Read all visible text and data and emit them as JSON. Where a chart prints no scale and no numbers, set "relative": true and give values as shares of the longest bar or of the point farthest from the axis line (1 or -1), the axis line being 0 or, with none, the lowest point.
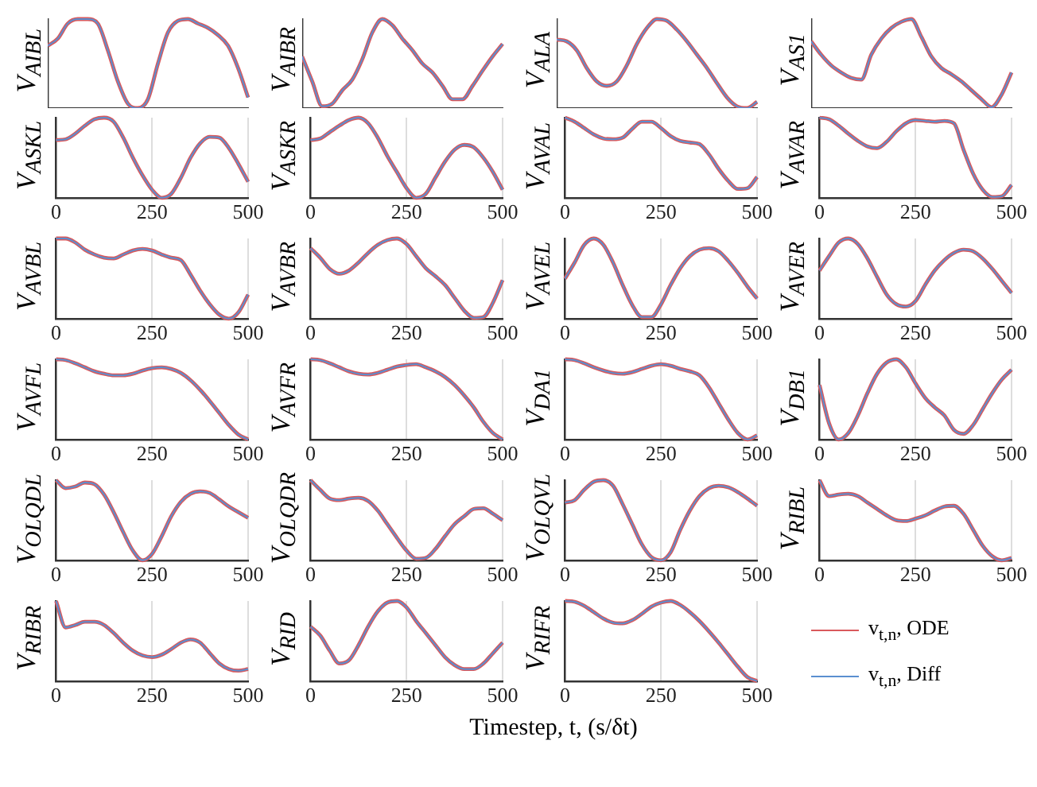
{
  "chart_data": [
    {
      "type": "line",
      "ylabel": "V$_{AIBL}$",
      "categories": [
        null,
        null,
        null,
        null,
        null,
        null,
        null,
        null,
        null,
        null,
        null,
        null,
        null,
        null,
        null,
        null,
        null,
        null,
        null,
        null,
        null
      ],
      "relative": true,
      "series": [
        {
          "color": "#d9595c",
          "values": [
            0.7,
            0.78,
            0.95,
            1,
            1,
            0.95,
            0.65,
            0.3,
            0.05,
            0,
            0.1,
            0.5,
            0.85,
            0.98,
            1,
            0.95,
            0.9,
            0.82,
            0.7,
            0.45,
            0.12
          ]
        },
        {
          "color": "#5a8fd0",
          "values": [
            0.7,
            0.78,
            0.95,
            1,
            1,
            0.95,
            0.65,
            0.3,
            0.05,
            0,
            0.1,
            0.5,
            0.85,
            0.98,
            1,
            0.95,
            0.9,
            0.82,
            0.7,
            0.45,
            0.12
          ]
        }
      ]
    },
    {
      "type": "line",
      "ylabel": "V$_{AIBR}$",
      "categories": [
        null,
        null,
        null,
        null,
        null,
        null,
        null,
        null,
        null,
        null,
        null,
        null,
        null,
        null,
        null,
        null,
        null,
        null,
        null,
        null,
        null
      ],
      "relative": true,
      "series": [
        {
          "color": "#d9595c",
          "values": [
            0.58,
            0.3,
            0.02,
            0.05,
            0.2,
            0.32,
            0.55,
            0.85,
            1,
            0.93,
            0.78,
            0.65,
            0.5,
            0.4,
            0.25,
            0.1,
            0.1,
            0.25,
            0.42,
            0.58,
            0.72
          ]
        },
        {
          "color": "#5a8fd0",
          "values": [
            0.58,
            0.3,
            0.02,
            0.05,
            0.2,
            0.32,
            0.55,
            0.85,
            1,
            0.93,
            0.78,
            0.65,
            0.5,
            0.4,
            0.25,
            0.1,
            0.1,
            0.25,
            0.42,
            0.58,
            0.72
          ]
        }
      ]
    },
    {
      "type": "line",
      "ylabel": "V$_{ALA}$",
      "categories": [
        null,
        null,
        null,
        null,
        null,
        null,
        null,
        null,
        null,
        null,
        null,
        null,
        null,
        null,
        null,
        null,
        null,
        null,
        null,
        null,
        null
      ],
      "relative": true,
      "series": [
        {
          "color": "#d9595c",
          "values": [
            0.77,
            0.75,
            0.65,
            0.45,
            0.3,
            0.25,
            0.3,
            0.48,
            0.72,
            0.9,
            1,
            0.98,
            0.88,
            0.75,
            0.6,
            0.45,
            0.28,
            0.12,
            0.02,
            0,
            0.07
          ]
        },
        {
          "color": "#5a8fd0",
          "values": [
            0.77,
            0.75,
            0.65,
            0.45,
            0.3,
            0.25,
            0.3,
            0.48,
            0.72,
            0.9,
            1,
            0.98,
            0.88,
            0.75,
            0.6,
            0.45,
            0.28,
            0.12,
            0.02,
            0,
            0.07
          ]
        }
      ]
    },
    {
      "type": "line",
      "ylabel": "V$_{AS1}$",
      "categories": [
        null,
        null,
        null,
        null,
        null,
        null,
        null,
        null,
        null,
        null,
        null,
        null,
        null,
        null,
        null,
        null,
        null,
        null,
        null,
        null,
        null
      ],
      "relative": true,
      "series": [
        {
          "color": "#d9595c",
          "values": [
            0.75,
            0.6,
            0.48,
            0.4,
            0.34,
            0.32,
            0.6,
            0.78,
            0.9,
            0.97,
            1,
            0.8,
            0.58,
            0.45,
            0.38,
            0.3,
            0.2,
            0.1,
            0.01,
            0.15,
            0.4
          ]
        },
        {
          "color": "#5a8fd0",
          "values": [
            0.75,
            0.6,
            0.48,
            0.4,
            0.34,
            0.32,
            0.6,
            0.78,
            0.9,
            0.97,
            1,
            0.8,
            0.58,
            0.45,
            0.38,
            0.3,
            0.2,
            0.1,
            0.01,
            0.15,
            0.4
          ]
        }
      ]
    },
    {
      "type": "line",
      "ylabel": "V$_{ASKL}$",
      "x": [
        0,
        25,
        50,
        75,
        100,
        125,
        150,
        175,
        200,
        225,
        250,
        275,
        300,
        325,
        350,
        375,
        400,
        425,
        450,
        475,
        500
      ],
      "xlim": [
        0,
        500
      ],
      "xticks": [
        0,
        250,
        500
      ],
      "grid": "x",
      "relative": true,
      "tick_labels": "x",
      "series": [
        {
          "color": "#d9595c",
          "values": [
            0.72,
            0.73,
            0.8,
            0.9,
            0.98,
            1,
            0.95,
            0.75,
            0.5,
            0.28,
            0.1,
            0,
            0.05,
            0.25,
            0.5,
            0.68,
            0.76,
            0.75,
            0.62,
            0.42,
            0.2
          ]
        },
        {
          "color": "#5a8fd0",
          "values": [
            0.72,
            0.73,
            0.8,
            0.9,
            0.98,
            1,
            0.95,
            0.75,
            0.5,
            0.28,
            0.1,
            0,
            0.05,
            0.25,
            0.5,
            0.68,
            0.76,
            0.75,
            0.62,
            0.42,
            0.2
          ]
        }
      ]
    },
    {
      "type": "line",
      "ylabel": "V$_{ASKR}$",
      "x": [
        0,
        25,
        50,
        75,
        100,
        125,
        150,
        175,
        200,
        225,
        250,
        275,
        300,
        325,
        350,
        375,
        400,
        425,
        450,
        475,
        500
      ],
      "xlim": [
        0,
        500
      ],
      "xticks": [
        0,
        250,
        500
      ],
      "grid": "x",
      "relative": true,
      "tick_labels": "x",
      "series": [
        {
          "color": "#d9595c",
          "values": [
            0.72,
            0.74,
            0.82,
            0.9,
            0.97,
            1,
            0.93,
            0.75,
            0.52,
            0.32,
            0.12,
            0,
            0.05,
            0.25,
            0.45,
            0.6,
            0.66,
            0.63,
            0.5,
            0.32,
            0.1
          ]
        },
        {
          "color": "#5a8fd0",
          "values": [
            0.72,
            0.74,
            0.82,
            0.9,
            0.97,
            1,
            0.93,
            0.75,
            0.52,
            0.32,
            0.12,
            0,
            0.05,
            0.25,
            0.45,
            0.6,
            0.66,
            0.63,
            0.5,
            0.32,
            0.1
          ]
        }
      ]
    },
    {
      "type": "line",
      "ylabel": "V$_{AVAL}$",
      "x": [
        0,
        25,
        50,
        75,
        100,
        125,
        150,
        175,
        200,
        225,
        250,
        275,
        300,
        325,
        350,
        375,
        400,
        425,
        450,
        475,
        500
      ],
      "xlim": [
        0,
        500
      ],
      "xticks": [
        0,
        250,
        500
      ],
      "grid": "x",
      "relative": true,
      "tick_labels": "x",
      "series": [
        {
          "color": "#d9595c",
          "values": [
            1,
            0.95,
            0.87,
            0.79,
            0.74,
            0.73,
            0.75,
            0.86,
            0.95,
            0.95,
            0.87,
            0.77,
            0.71,
            0.69,
            0.67,
            0.54,
            0.36,
            0.21,
            0.11,
            0.12,
            0.26
          ]
        },
        {
          "color": "#5a8fd0",
          "values": [
            1,
            0.95,
            0.87,
            0.79,
            0.74,
            0.73,
            0.75,
            0.86,
            0.95,
            0.95,
            0.87,
            0.77,
            0.71,
            0.69,
            0.67,
            0.54,
            0.36,
            0.21,
            0.11,
            0.12,
            0.26
          ]
        }
      ]
    },
    {
      "type": "line",
      "ylabel": "V$_{AVAR}$",
      "x": [
        0,
        25,
        50,
        75,
        100,
        125,
        150,
        175,
        200,
        225,
        250,
        275,
        300,
        325,
        350,
        375,
        400,
        425,
        450,
        475,
        500
      ],
      "xlim": [
        0,
        500
      ],
      "xticks": [
        0,
        250,
        500
      ],
      "grid": "x",
      "relative": true,
      "tick_labels": "x",
      "series": [
        {
          "color": "#d9595c",
          "values": [
            1,
            0.98,
            0.9,
            0.8,
            0.71,
            0.64,
            0.62,
            0.7,
            0.83,
            0.93,
            0.97,
            0.96,
            0.95,
            0.96,
            0.93,
            0.6,
            0.3,
            0.1,
            0.01,
            0.02,
            0.16
          ]
        },
        {
          "color": "#5a8fd0",
          "values": [
            1,
            0.98,
            0.9,
            0.8,
            0.71,
            0.64,
            0.62,
            0.7,
            0.83,
            0.93,
            0.97,
            0.96,
            0.95,
            0.96,
            0.93,
            0.6,
            0.3,
            0.1,
            0.01,
            0.02,
            0.16
          ]
        }
      ]
    },
    {
      "type": "line",
      "ylabel": "V$_{AVBL}$",
      "x": [
        0,
        25,
        50,
        75,
        100,
        125,
        150,
        175,
        200,
        225,
        250,
        275,
        300,
        325,
        350,
        375,
        400,
        425,
        450,
        475,
        500
      ],
      "xlim": [
        0,
        500
      ],
      "xticks": [
        0,
        250,
        500
      ],
      "grid": "x",
      "relative": true,
      "tick_labels": "x",
      "series": [
        {
          "color": "#d9595c",
          "values": [
            1,
            1,
            0.95,
            0.86,
            0.8,
            0.76,
            0.75,
            0.8,
            0.85,
            0.87,
            0.85,
            0.8,
            0.76,
            0.73,
            0.55,
            0.35,
            0.18,
            0.05,
            0,
            0.08,
            0.3
          ]
        },
        {
          "color": "#5a8fd0",
          "values": [
            1,
            1,
            0.95,
            0.86,
            0.8,
            0.76,
            0.75,
            0.8,
            0.85,
            0.87,
            0.85,
            0.8,
            0.76,
            0.73,
            0.55,
            0.35,
            0.18,
            0.05,
            0,
            0.08,
            0.3
          ]
        }
      ]
    },
    {
      "type": "line",
      "ylabel": "V$_{AVBR}$",
      "x": [
        0,
        25,
        50,
        75,
        100,
        125,
        150,
        175,
        200,
        225,
        250,
        275,
        300,
        325,
        350,
        375,
        400,
        425,
        450,
        475,
        500
      ],
      "xlim": [
        0,
        500
      ],
      "xticks": [
        0,
        250,
        500
      ],
      "grid": "x",
      "relative": true,
      "tick_labels": "x",
      "series": [
        {
          "color": "#d9595c",
          "values": [
            0.88,
            0.76,
            0.62,
            0.56,
            0.6,
            0.7,
            0.82,
            0.92,
            0.98,
            1,
            0.93,
            0.78,
            0.63,
            0.53,
            0.42,
            0.26,
            0.1,
            0.01,
            0.02,
            0.2,
            0.48
          ]
        },
        {
          "color": "#5a8fd0",
          "values": [
            0.88,
            0.76,
            0.62,
            0.56,
            0.6,
            0.7,
            0.82,
            0.92,
            0.98,
            1,
            0.93,
            0.78,
            0.63,
            0.53,
            0.42,
            0.26,
            0.1,
            0.01,
            0.02,
            0.2,
            0.48
          ]
        }
      ]
    },
    {
      "type": "line",
      "ylabel": "V$_{AVEL}$",
      "x": [
        0,
        25,
        50,
        75,
        100,
        125,
        150,
        175,
        200,
        225,
        250,
        275,
        300,
        325,
        350,
        375,
        400,
        425,
        450,
        475,
        500
      ],
      "xlim": [
        0,
        500
      ],
      "xticks": [
        0,
        250,
        500
      ],
      "grid": "x",
      "relative": true,
      "tick_labels": "x",
      "series": [
        {
          "color": "#d9595c",
          "values": [
            0.5,
            0.7,
            0.92,
            1,
            0.92,
            0.7,
            0.42,
            0.17,
            0.02,
            0.02,
            0.18,
            0.42,
            0.63,
            0.78,
            0.86,
            0.88,
            0.84,
            0.72,
            0.57,
            0.4,
            0.25
          ]
        },
        {
          "color": "#5a8fd0",
          "values": [
            0.5,
            0.7,
            0.92,
            1,
            0.92,
            0.7,
            0.42,
            0.17,
            0.02,
            0.02,
            0.18,
            0.42,
            0.63,
            0.78,
            0.86,
            0.88,
            0.84,
            0.72,
            0.57,
            0.4,
            0.25
          ]
        }
      ]
    },
    {
      "type": "line",
      "ylabel": "V$_{AVER}$",
      "x": [
        0,
        25,
        50,
        75,
        100,
        125,
        150,
        175,
        200,
        225,
        250,
        275,
        300,
        325,
        350,
        375,
        400,
        425,
        450,
        475,
        500
      ],
      "xlim": [
        0,
        500
      ],
      "xticks": [
        0,
        250,
        500
      ],
      "grid": "x",
      "relative": true,
      "tick_labels": "x",
      "series": [
        {
          "color": "#d9595c",
          "values": [
            0.6,
            0.78,
            0.95,
            1,
            0.93,
            0.75,
            0.52,
            0.3,
            0.18,
            0.15,
            0.22,
            0.42,
            0.6,
            0.73,
            0.82,
            0.86,
            0.84,
            0.75,
            0.62,
            0.47,
            0.32
          ]
        },
        {
          "color": "#5a8fd0",
          "values": [
            0.6,
            0.78,
            0.95,
            1,
            0.93,
            0.75,
            0.52,
            0.3,
            0.18,
            0.15,
            0.22,
            0.42,
            0.6,
            0.73,
            0.82,
            0.86,
            0.84,
            0.75,
            0.62,
            0.47,
            0.32
          ]
        }
      ]
    },
    {
      "type": "line",
      "ylabel": "V$_{AVFL}$",
      "x": [
        0,
        25,
        50,
        75,
        100,
        125,
        150,
        175,
        200,
        225,
        250,
        275,
        300,
        325,
        350,
        375,
        400,
        425,
        450,
        475,
        500
      ],
      "xlim": [
        0,
        500
      ],
      "xticks": [
        0,
        250,
        500
      ],
      "grid": "x",
      "relative": true,
      "tick_labels": "x",
      "series": [
        {
          "color": "#d9595c",
          "values": [
            1,
            0.99,
            0.95,
            0.9,
            0.85,
            0.82,
            0.8,
            0.8,
            0.82,
            0.86,
            0.89,
            0.9,
            0.88,
            0.83,
            0.74,
            0.62,
            0.48,
            0.33,
            0.18,
            0.06,
            0
          ]
        },
        {
          "color": "#5a8fd0",
          "values": [
            1,
            0.99,
            0.95,
            0.9,
            0.85,
            0.82,
            0.8,
            0.8,
            0.82,
            0.86,
            0.89,
            0.9,
            0.88,
            0.83,
            0.74,
            0.62,
            0.48,
            0.33,
            0.18,
            0.06,
            0
          ]
        }
      ]
    },
    {
      "type": "line",
      "ylabel": "V$_{AVFR}$",
      "x": [
        0,
        25,
        50,
        75,
        100,
        125,
        150,
        175,
        200,
        225,
        250,
        275,
        300,
        325,
        350,
        375,
        400,
        425,
        450,
        475,
        500
      ],
      "xlim": [
        0,
        500
      ],
      "xticks": [
        0,
        250,
        500
      ],
      "grid": "x",
      "relative": true,
      "tick_labels": "x",
      "series": [
        {
          "color": "#d9595c",
          "values": [
            1,
            0.99,
            0.95,
            0.9,
            0.85,
            0.82,
            0.81,
            0.83,
            0.87,
            0.91,
            0.93,
            0.94,
            0.9,
            0.85,
            0.78,
            0.68,
            0.55,
            0.4,
            0.22,
            0.08,
            0
          ]
        },
        {
          "color": "#5a8fd0",
          "values": [
            1,
            0.99,
            0.95,
            0.9,
            0.85,
            0.82,
            0.81,
            0.83,
            0.87,
            0.91,
            0.93,
            0.94,
            0.9,
            0.85,
            0.78,
            0.68,
            0.55,
            0.4,
            0.22,
            0.08,
            0
          ]
        }
      ]
    },
    {
      "type": "line",
      "ylabel": "V$_{DA1}$",
      "x": [
        0,
        25,
        50,
        75,
        100,
        125,
        150,
        175,
        200,
        225,
        250,
        275,
        300,
        325,
        350,
        375,
        400,
        425,
        450,
        475,
        500
      ],
      "xlim": [
        0,
        500
      ],
      "xticks": [
        0,
        250,
        500
      ],
      "grid": "x",
      "relative": true,
      "tick_labels": "x",
      "series": [
        {
          "color": "#d9595c",
          "values": [
            1,
            0.99,
            0.95,
            0.9,
            0.86,
            0.83,
            0.82,
            0.84,
            0.88,
            0.92,
            0.94,
            0.92,
            0.88,
            0.85,
            0.8,
            0.65,
            0.45,
            0.25,
            0.08,
            0,
            0.05
          ]
        },
        {
          "color": "#5a8fd0",
          "values": [
            1,
            0.99,
            0.95,
            0.9,
            0.86,
            0.83,
            0.82,
            0.84,
            0.88,
            0.92,
            0.94,
            0.92,
            0.88,
            0.85,
            0.8,
            0.65,
            0.45,
            0.25,
            0.08,
            0,
            0.05
          ]
        }
      ]
    },
    {
      "type": "line",
      "ylabel": "V$_{DB1}$",
      "x": [
        0,
        25,
        50,
        75,
        100,
        125,
        150,
        175,
        200,
        225,
        250,
        275,
        300,
        325,
        350,
        375,
        400,
        425,
        450,
        475,
        500
      ],
      "xlim": [
        0,
        500
      ],
      "xticks": [
        0,
        250,
        500
      ],
      "grid": "x",
      "relative": true,
      "tick_labels": "x",
      "series": [
        {
          "color": "#d9595c",
          "values": [
            0.68,
            0.2,
            0,
            0.08,
            0.3,
            0.58,
            0.82,
            0.96,
            1,
            0.9,
            0.7,
            0.52,
            0.4,
            0.3,
            0.12,
            0.07,
            0.18,
            0.38,
            0.58,
            0.75,
            0.87
          ]
        },
        {
          "color": "#5a8fd0",
          "values": [
            0.68,
            0.2,
            0,
            0.08,
            0.3,
            0.58,
            0.82,
            0.96,
            1,
            0.9,
            0.7,
            0.52,
            0.4,
            0.3,
            0.12,
            0.07,
            0.18,
            0.38,
            0.58,
            0.75,
            0.87
          ]
        }
      ]
    },
    {
      "type": "line",
      "ylabel": "V$_{OLQDL}$",
      "x": [
        0,
        25,
        50,
        75,
        100,
        125,
        150,
        175,
        200,
        225,
        250,
        275,
        300,
        325,
        350,
        375,
        400,
        425,
        450,
        475,
        500
      ],
      "xlim": [
        0,
        500
      ],
      "xticks": [
        0,
        250,
        500
      ],
      "grid": "x",
      "relative": true,
      "tick_labels": "x",
      "series": [
        {
          "color": "#d9595c",
          "values": [
            1,
            0.9,
            0.92,
            0.97,
            0.95,
            0.82,
            0.6,
            0.35,
            0.12,
            0,
            0.08,
            0.3,
            0.55,
            0.73,
            0.83,
            0.86,
            0.84,
            0.76,
            0.67,
            0.6,
            0.53
          ]
        },
        {
          "color": "#5a8fd0",
          "values": [
            1,
            0.9,
            0.92,
            0.97,
            0.95,
            0.82,
            0.6,
            0.35,
            0.12,
            0,
            0.08,
            0.3,
            0.55,
            0.73,
            0.83,
            0.86,
            0.84,
            0.76,
            0.67,
            0.6,
            0.53
          ]
        }
      ]
    },
    {
      "type": "line",
      "ylabel": "V$_{OLQDR}$",
      "x": [
        0,
        25,
        50,
        75,
        100,
        125,
        150,
        175,
        200,
        225,
        250,
        275,
        300,
        325,
        350,
        375,
        400,
        425,
        450,
        475,
        500
      ],
      "xlim": [
        0,
        500
      ],
      "xticks": [
        0,
        250,
        500
      ],
      "grid": "x",
      "relative": true,
      "tick_labels": "x",
      "series": [
        {
          "color": "#d9595c",
          "values": [
            1,
            0.88,
            0.77,
            0.75,
            0.77,
            0.78,
            0.74,
            0.62,
            0.45,
            0.28,
            0.12,
            0.02,
            0.03,
            0.14,
            0.3,
            0.45,
            0.55,
            0.64,
            0.65,
            0.58,
            0.5
          ]
        },
        {
          "color": "#5a8fd0",
          "values": [
            1,
            0.88,
            0.77,
            0.75,
            0.77,
            0.78,
            0.74,
            0.62,
            0.45,
            0.28,
            0.12,
            0.02,
            0.03,
            0.14,
            0.3,
            0.45,
            0.55,
            0.64,
            0.65,
            0.58,
            0.5
          ]
        }
      ]
    },
    {
      "type": "line",
      "ylabel": "V$_{OLQVL}$",
      "x": [
        0,
        25,
        50,
        75,
        100,
        125,
        150,
        175,
        200,
        225,
        250,
        275,
        300,
        325,
        350,
        375,
        400,
        425,
        450,
        475,
        500
      ],
      "xlim": [
        0,
        500
      ],
      "xticks": [
        0,
        250,
        500
      ],
      "grid": "x",
      "relative": true,
      "tick_labels": "x",
      "series": [
        {
          "color": "#d9595c",
          "values": [
            0.72,
            0.75,
            0.88,
            0.98,
            1,
            0.93,
            0.7,
            0.45,
            0.2,
            0.04,
            0,
            0.1,
            0.38,
            0.62,
            0.8,
            0.9,
            0.93,
            0.91,
            0.85,
            0.77,
            0.68
          ]
        },
        {
          "color": "#5a8fd0",
          "values": [
            0.72,
            0.75,
            0.88,
            0.98,
            1,
            0.93,
            0.7,
            0.45,
            0.2,
            0.04,
            0,
            0.1,
            0.38,
            0.62,
            0.8,
            0.9,
            0.93,
            0.91,
            0.85,
            0.77,
            0.68
          ]
        }
      ]
    },
    {
      "type": "line",
      "ylabel": "V$_{RIBL}$",
      "x": [
        0,
        25,
        50,
        75,
        100,
        125,
        150,
        175,
        200,
        225,
        250,
        275,
        300,
        325,
        350,
        375,
        400,
        425,
        450,
        475,
        500
      ],
      "xlim": [
        0,
        500
      ],
      "xticks": [
        0,
        250,
        500
      ],
      "grid": "x",
      "relative": true,
      "tick_labels": "x",
      "series": [
        {
          "color": "#d9595c",
          "values": [
            1,
            0.8,
            0.82,
            0.83,
            0.8,
            0.72,
            0.64,
            0.56,
            0.5,
            0.49,
            0.52,
            0.56,
            0.62,
            0.67,
            0.68,
            0.58,
            0.38,
            0.18,
            0.05,
            0,
            0.03
          ]
        },
        {
          "color": "#5a8fd0",
          "values": [
            1,
            0.8,
            0.82,
            0.83,
            0.8,
            0.72,
            0.64,
            0.56,
            0.5,
            0.49,
            0.52,
            0.56,
            0.62,
            0.67,
            0.68,
            0.58,
            0.38,
            0.18,
            0.05,
            0,
            0.03
          ]
        }
      ]
    },
    {
      "type": "line",
      "ylabel": "V$_{RIBR}$",
      "x": [
        0,
        25,
        50,
        75,
        100,
        125,
        150,
        175,
        200,
        225,
        250,
        275,
        300,
        325,
        350,
        375,
        400,
        425,
        450,
        475,
        500
      ],
      "xlim": [
        0,
        500
      ],
      "xticks": [
        0,
        250,
        500
      ],
      "grid": "x",
      "relative": true,
      "tick_labels": "x",
      "series": [
        {
          "color": "#d9595c",
          "values": [
            1,
            0.67,
            0.7,
            0.74,
            0.74,
            0.7,
            0.6,
            0.48,
            0.38,
            0.32,
            0.3,
            0.33,
            0.4,
            0.48,
            0.52,
            0.48,
            0.35,
            0.22,
            0.15,
            0.13,
            0.15
          ]
        },
        {
          "color": "#5a8fd0",
          "values": [
            1,
            0.67,
            0.7,
            0.74,
            0.74,
            0.7,
            0.6,
            0.48,
            0.38,
            0.32,
            0.3,
            0.33,
            0.4,
            0.48,
            0.52,
            0.48,
            0.35,
            0.22,
            0.15,
            0.13,
            0.15
          ]
        }
      ]
    },
    {
      "type": "line",
      "ylabel": "V$_{RID}$",
      "x": [
        0,
        25,
        50,
        75,
        100,
        125,
        150,
        175,
        200,
        225,
        250,
        275,
        300,
        325,
        350,
        375,
        400,
        425,
        450,
        475,
        500
      ],
      "xlim": [
        0,
        500
      ],
      "xticks": [
        0,
        250,
        500
      ],
      "grid": "x",
      "relative": true,
      "tick_labels": "x",
      "series": [
        {
          "color": "#d9595c",
          "values": [
            0.68,
            0.57,
            0.38,
            0.22,
            0.26,
            0.45,
            0.68,
            0.87,
            0.98,
            1,
            0.92,
            0.75,
            0.6,
            0.45,
            0.3,
            0.2,
            0.15,
            0.15,
            0.22,
            0.35,
            0.48
          ]
        },
        {
          "color": "#5a8fd0",
          "values": [
            0.68,
            0.57,
            0.38,
            0.22,
            0.26,
            0.45,
            0.68,
            0.87,
            0.98,
            1,
            0.92,
            0.75,
            0.6,
            0.45,
            0.3,
            0.2,
            0.15,
            0.15,
            0.22,
            0.35,
            0.48
          ]
        }
      ]
    },
    {
      "type": "line",
      "ylabel": "V$_{RIFR}$",
      "xlabel": "Timestep, t, (s/δt)",
      "legend": "right",
      "x": [
        0,
        25,
        50,
        75,
        100,
        125,
        150,
        175,
        200,
        225,
        250,
        275,
        300,
        325,
        350,
        375,
        400,
        425,
        450,
        475,
        500
      ],
      "xlim": [
        0,
        500
      ],
      "xticks": [
        0,
        250,
        500
      ],
      "grid": "x",
      "relative": true,
      "tick_labels": "x",
      "series": [
        {
          "name": "v$_{t,n}$, ODE",
          "color": "#d9595c",
          "values": [
            1,
            0.99,
            0.94,
            0.86,
            0.78,
            0.73,
            0.72,
            0.76,
            0.84,
            0.93,
            0.98,
            1,
            0.95,
            0.86,
            0.75,
            0.62,
            0.48,
            0.33,
            0.18,
            0.05,
            0
          ]
        },
        {
          "name": "v$_{t,n}$, Diff",
          "color": "#5a8fd0",
          "values": [
            1,
            0.99,
            0.94,
            0.86,
            0.78,
            0.73,
            0.72,
            0.76,
            0.84,
            0.93,
            0.98,
            1,
            0.95,
            0.86,
            0.75,
            0.62,
            0.48,
            0.33,
            0.18,
            0.05,
            0
          ]
        }
      ]
    }
  ]
}
